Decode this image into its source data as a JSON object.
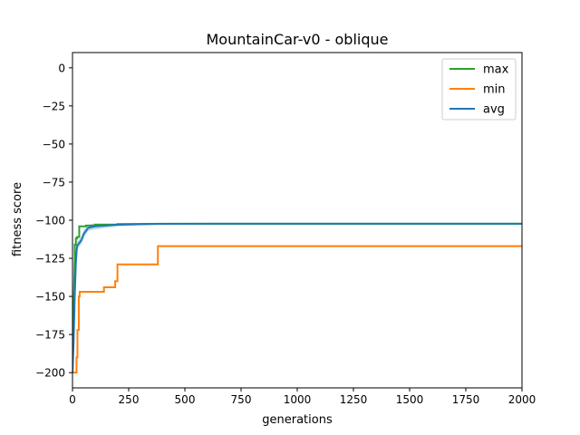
{
  "chart_data": {
    "type": "line",
    "title": "MountainCar-v0 - oblique",
    "xlabel": "generations",
    "ylabel": "fitness score",
    "xlim": [
      0,
      2000
    ],
    "ylim": [
      -210,
      10
    ],
    "xticks": [
      0,
      250,
      500,
      750,
      1000,
      1250,
      1500,
      1750,
      2000
    ],
    "yticks": [
      0,
      -25,
      -50,
      -75,
      -100,
      -125,
      -150,
      -175,
      -200
    ],
    "grid": false,
    "legend_position": "upper right",
    "series": [
      {
        "name": "max",
        "color": "#2ca02c",
        "x": [
          0,
          5,
          10,
          10,
          15,
          15,
          20,
          20,
          30,
          30,
          60,
          60,
          100,
          100,
          200,
          200,
          400,
          2000
        ],
        "y": [
          -200,
          -160,
          -125,
          -116,
          -116,
          -112,
          -112,
          -111,
          -111,
          -104,
          -104,
          -103.5,
          -103.5,
          -103,
          -103,
          -102.5,
          -102.3,
          -102.3
        ]
      },
      {
        "name": "min",
        "color": "#ff7f0e",
        "x": [
          0,
          18,
          18,
          22,
          22,
          28,
          28,
          32,
          32,
          140,
          140,
          190,
          190,
          200,
          200,
          380,
          380,
          2000
        ],
        "y": [
          -200,
          -200,
          -190,
          -190,
          -172,
          -172,
          -150,
          -150,
          -147,
          -147,
          -144,
          -144,
          -140,
          -140,
          -129,
          -129,
          -117,
          -117
        ]
      },
      {
        "name": "avg",
        "color": "#1f77b4",
        "band_color": "#8fbfe0",
        "x": [
          0,
          5,
          10,
          15,
          20,
          30,
          40,
          50,
          70,
          100,
          150,
          200,
          300,
          400,
          600,
          1000,
          2000
        ],
        "y": [
          -200,
          -180,
          -150,
          -128,
          -117,
          -115,
          -113,
          -109,
          -105,
          -104,
          -103.5,
          -103,
          -102.7,
          -102.4,
          -102.3,
          -102.3,
          -102.3
        ],
        "band_width": [
          0,
          3,
          4,
          4,
          3,
          2.5,
          2.5,
          2.5,
          2,
          2,
          1.5,
          1,
          0.5,
          0.3,
          0,
          0,
          0
        ]
      }
    ]
  }
}
